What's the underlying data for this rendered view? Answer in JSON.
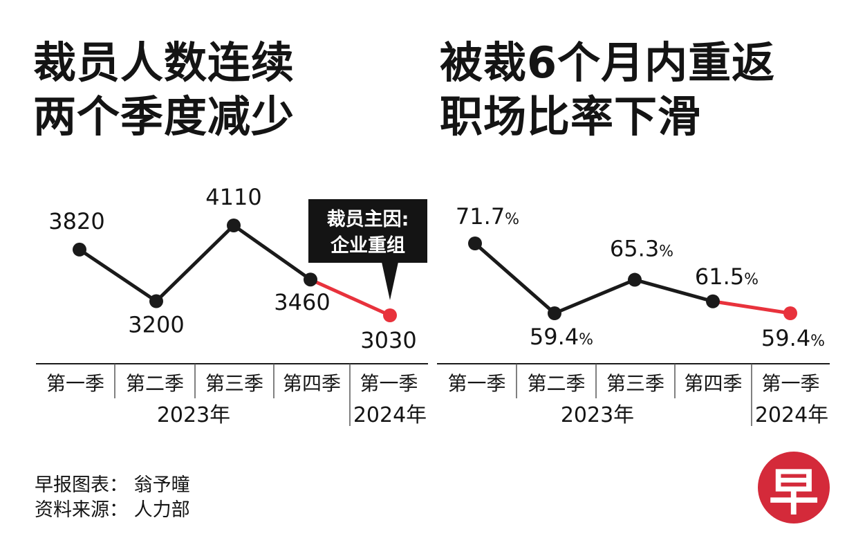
{
  "titles": {
    "left_line1": "裁员人数连续",
    "left_line2": "两个季度减少",
    "right_line1": "被裁6个月内重返",
    "right_line2": "职场比率下滑"
  },
  "callout": {
    "line1": "裁员主因:",
    "line2": "企业重组"
  },
  "footer": {
    "credit": "早报图表： 翁予曈",
    "source": "资料来源： 人力部"
  },
  "logo": {
    "text": "早"
  },
  "colors": {
    "line": "#1a1a1a",
    "highlight": "#e8323c",
    "logo": "#d42a3a"
  },
  "chart_data": [
    {
      "type": "line",
      "categories": [
        "第一季",
        "第二季",
        "第三季",
        "第四季",
        "第一季"
      ],
      "year_groups": [
        {
          "label": "2023年",
          "span": 4
        },
        {
          "label": "2024年",
          "span": 1
        }
      ],
      "values": [
        3820,
        3200,
        4110,
        3460,
        3030
      ],
      "value_labels": [
        "3820",
        "3200",
        "4110",
        "3460",
        "3030"
      ],
      "unit": "",
      "highlight_last_segment": true,
      "grid": false
    },
    {
      "type": "line",
      "categories": [
        "第一季",
        "第二季",
        "第三季",
        "第四季",
        "第一季"
      ],
      "year_groups": [
        {
          "label": "2023年",
          "span": 4
        },
        {
          "label": "2024年",
          "span": 1
        }
      ],
      "values": [
        71.7,
        59.4,
        65.3,
        61.5,
        59.4
      ],
      "value_labels": [
        "71.7",
        "59.4",
        "65.3",
        "61.5",
        "59.4"
      ],
      "unit": "%",
      "highlight_last_segment": true,
      "grid": false
    }
  ]
}
